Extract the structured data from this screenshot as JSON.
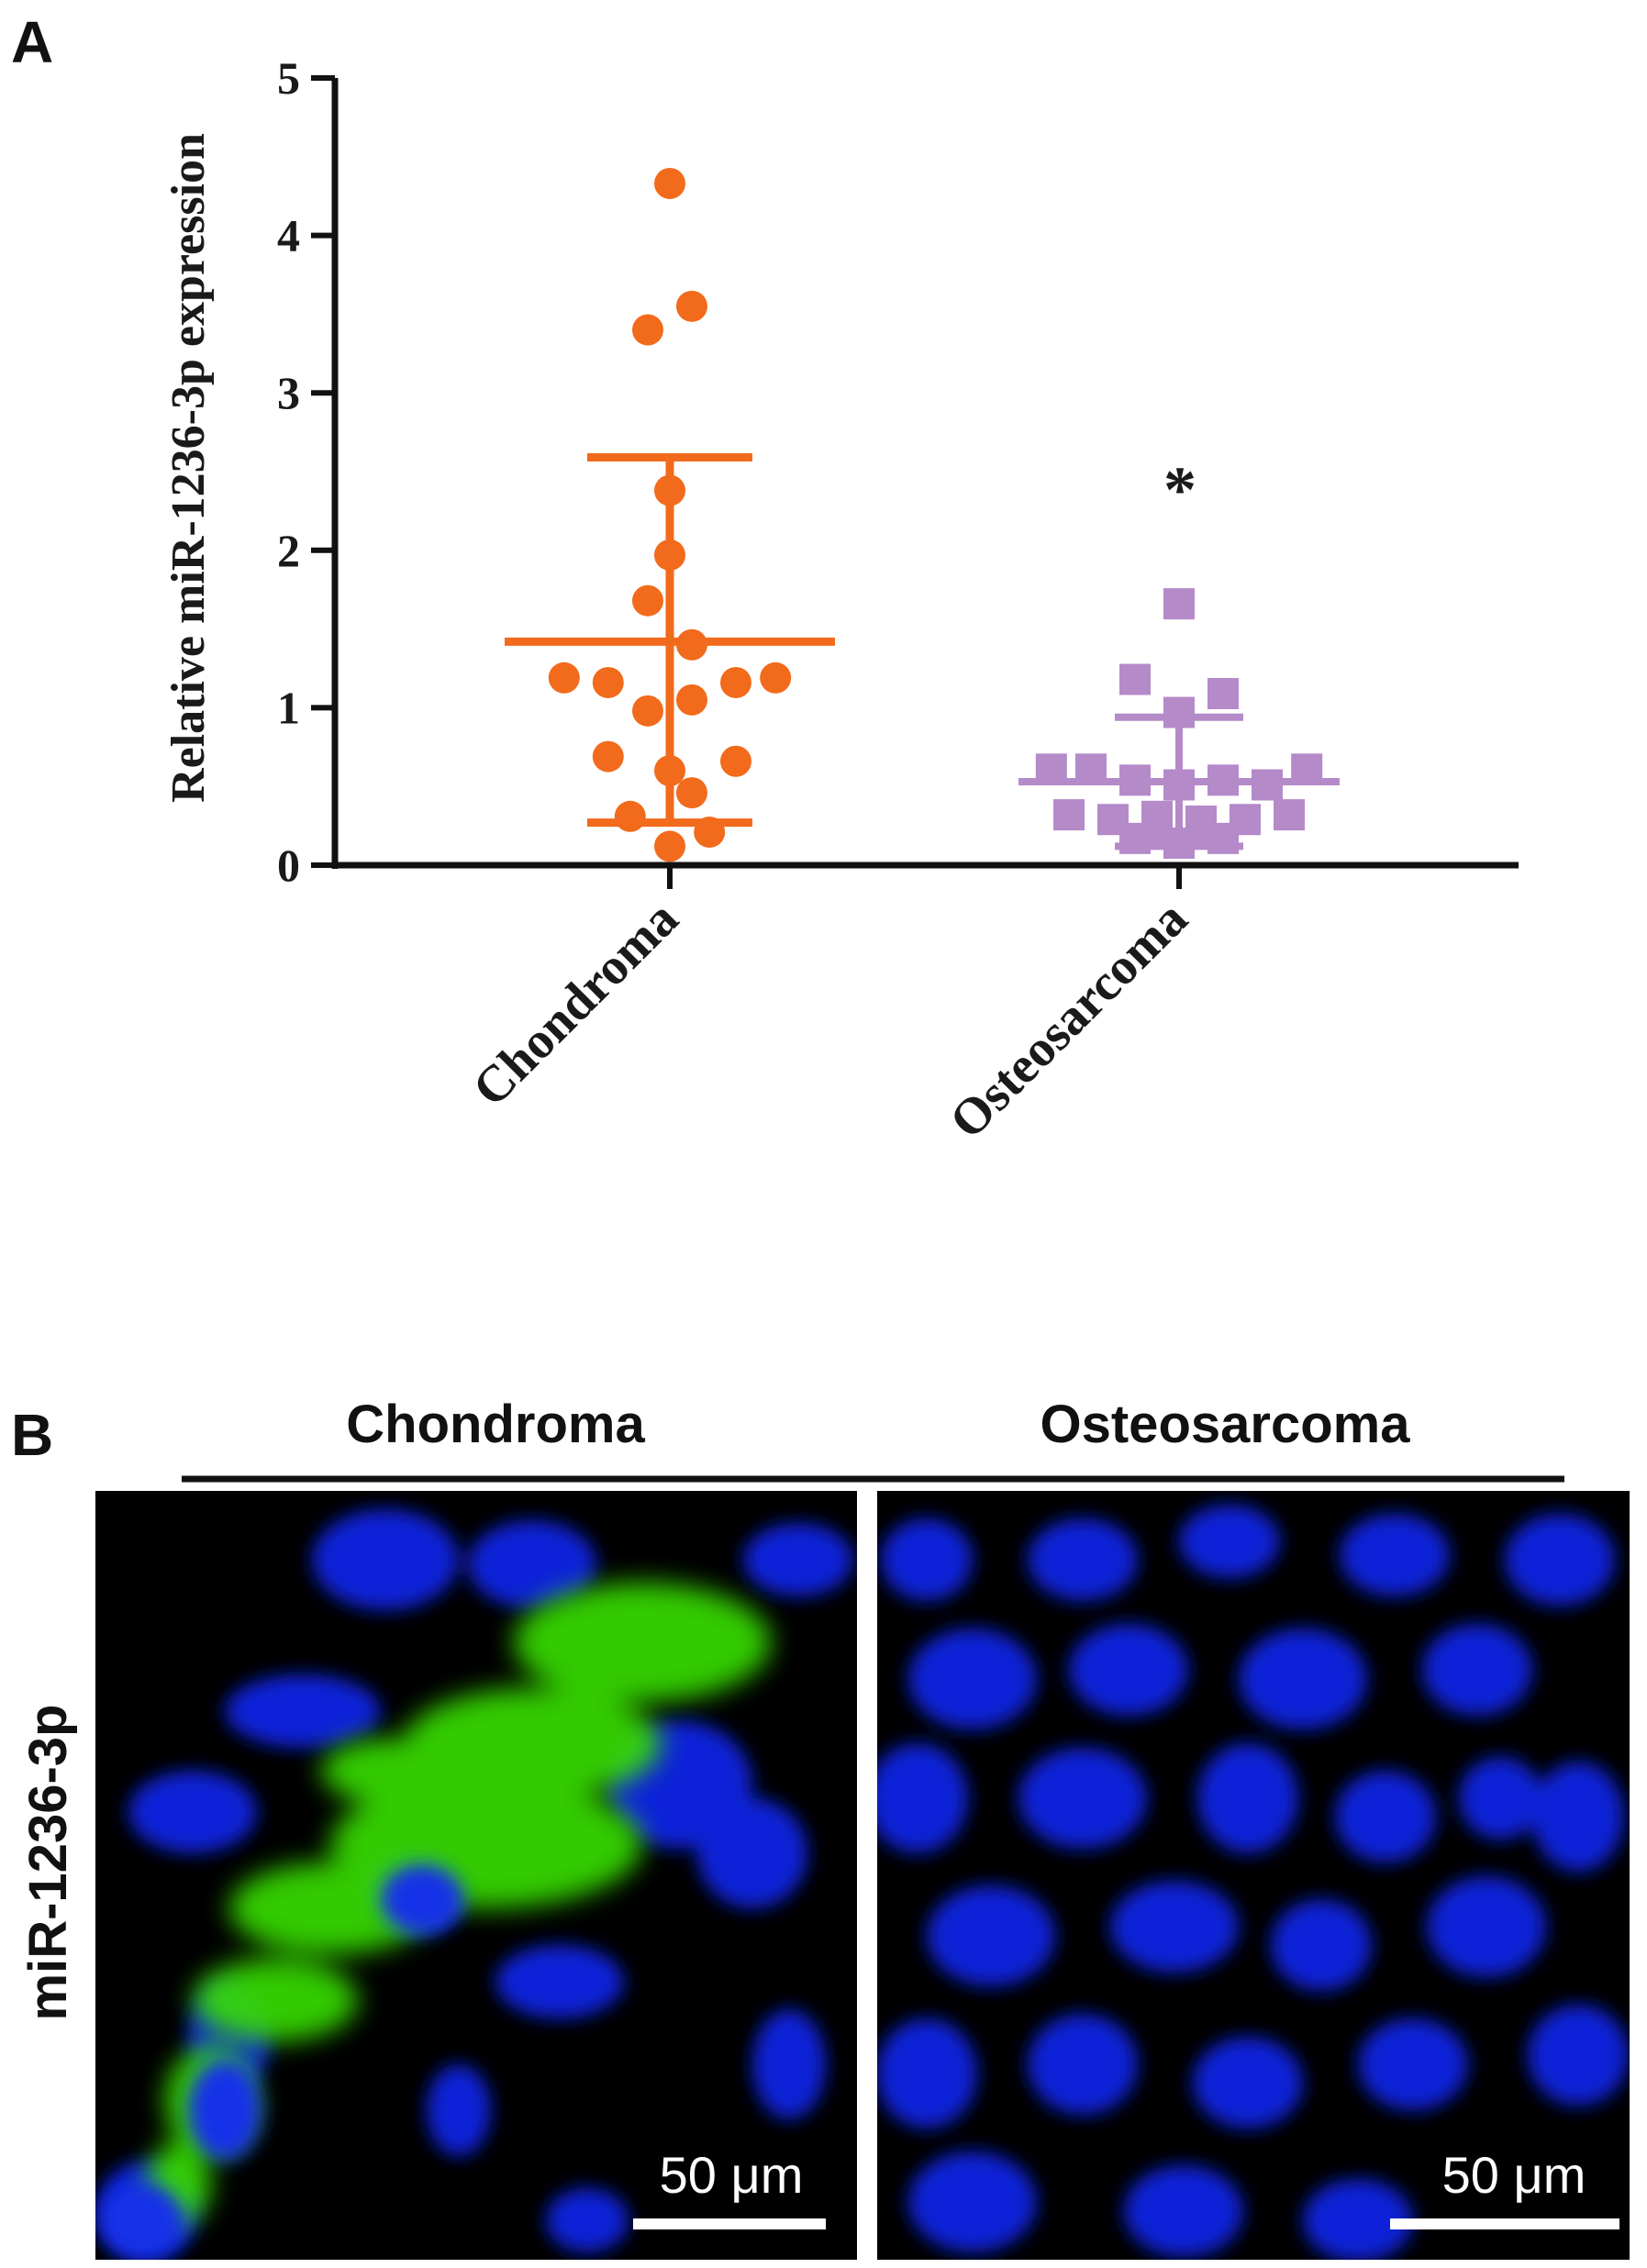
{
  "panel_a": {
    "letter": "A",
    "significance": "*"
  },
  "panel_b": {
    "letter": "B",
    "header_left": "Chondroma",
    "header_right": "Osteosarcoma",
    "row_label": "miR-1236-3p",
    "scale_left": "50 μm",
    "scale_right": "50 μm"
  },
  "colors": {
    "chondroma": "#F26A1B",
    "osteosarcoma": "#B58AC9",
    "nuclei": "#1020D8",
    "signal": "#39E000"
  },
  "chart_data": {
    "type": "scatter",
    "ylabel": "Relative miR-1236-3p expression",
    "ylim": [
      0,
      5
    ],
    "yticks": [
      "0",
      "1",
      "2",
      "3",
      "4",
      "5"
    ],
    "categories": [
      "Chondroma",
      "Osteosarcoma"
    ],
    "series": [
      {
        "name": "Chondroma",
        "marker": "circle",
        "mean": 1.42,
        "sd_upper": 2.59,
        "sd_lower": 0.27,
        "points": [
          {
            "offset": 0.0,
            "y": 4.33
          },
          {
            "offset": 0.05,
            "y": 3.55
          },
          {
            "offset": -0.05,
            "y": 3.4
          },
          {
            "offset": 0.0,
            "y": 2.38
          },
          {
            "offset": 0.0,
            "y": 1.97
          },
          {
            "offset": -0.05,
            "y": 1.68
          },
          {
            "offset": 0.05,
            "y": 1.4
          },
          {
            "offset": -0.24,
            "y": 1.19
          },
          {
            "offset": -0.14,
            "y": 1.16
          },
          {
            "offset": 0.15,
            "y": 1.16
          },
          {
            "offset": 0.24,
            "y": 1.19
          },
          {
            "offset": -0.05,
            "y": 0.98
          },
          {
            "offset": 0.05,
            "y": 1.05
          },
          {
            "offset": -0.14,
            "y": 0.69
          },
          {
            "offset": 0.0,
            "y": 0.6
          },
          {
            "offset": 0.15,
            "y": 0.66
          },
          {
            "offset": 0.05,
            "y": 0.46
          },
          {
            "offset": -0.09,
            "y": 0.31
          },
          {
            "offset": 0.09,
            "y": 0.21
          },
          {
            "offset": 0.0,
            "y": 0.12
          }
        ]
      },
      {
        "name": "Osteosarcoma",
        "marker": "square",
        "mean": 0.53,
        "sd_upper": 0.94,
        "sd_lower": 0.12,
        "points": [
          {
            "offset": 0.0,
            "y": 1.66
          },
          {
            "offset": -0.1,
            "y": 1.18
          },
          {
            "offset": 0.1,
            "y": 1.09
          },
          {
            "offset": 0.0,
            "y": 0.97
          },
          {
            "offset": -0.29,
            "y": 0.61
          },
          {
            "offset": -0.2,
            "y": 0.61
          },
          {
            "offset": -0.1,
            "y": 0.54
          },
          {
            "offset": 0.0,
            "y": 0.51
          },
          {
            "offset": 0.1,
            "y": 0.54
          },
          {
            "offset": 0.2,
            "y": 0.51
          },
          {
            "offset": 0.29,
            "y": 0.61
          },
          {
            "offset": -0.25,
            "y": 0.32
          },
          {
            "offset": -0.15,
            "y": 0.29
          },
          {
            "offset": -0.05,
            "y": 0.31
          },
          {
            "offset": 0.05,
            "y": 0.28
          },
          {
            "offset": 0.15,
            "y": 0.29
          },
          {
            "offset": 0.25,
            "y": 0.32
          },
          {
            "offset": -0.1,
            "y": 0.17
          },
          {
            "offset": 0.0,
            "y": 0.14
          },
          {
            "offset": 0.1,
            "y": 0.17
          },
          {
            "offset": -0.05,
            "y": 0.22
          },
          {
            "offset": 0.05,
            "y": 0.21
          }
        ]
      }
    ]
  }
}
